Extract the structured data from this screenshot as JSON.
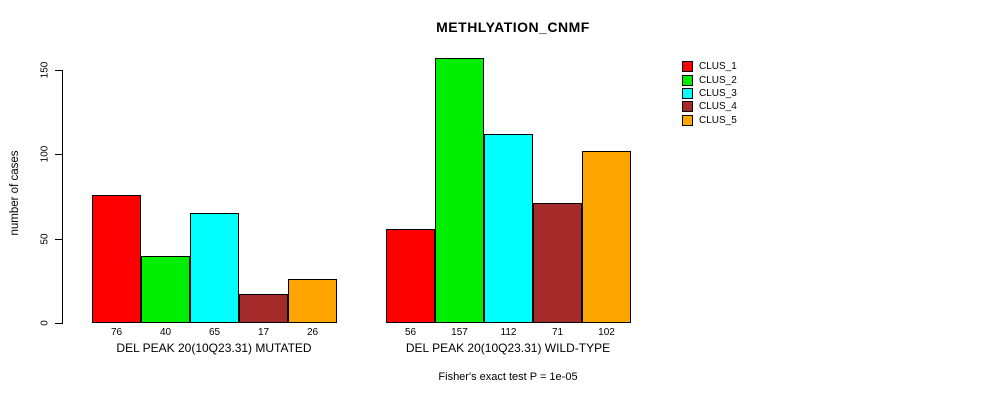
{
  "chart_data": {
    "type": "bar",
    "title": "METHLYATION_CNMF",
    "ylabel": "number of cases",
    "ylim": [
      0,
      157
    ],
    "yticks": [
      0,
      50,
      100,
      150
    ],
    "grid": false,
    "legend_position": "right-outside",
    "bar_border_color": "#000000",
    "series": [
      {
        "name": "CLUS_1",
        "color": "#FF0000"
      },
      {
        "name": "CLUS_2",
        "color": "#00EE00"
      },
      {
        "name": "CLUS_3",
        "color": "#00FFFF"
      },
      {
        "name": "CLUS_4",
        "color": "#A52A2A"
      },
      {
        "name": "CLUS_5",
        "color": "#FFA500"
      }
    ],
    "groups": [
      {
        "label": "DEL PEAK 20(10Q23.31) MUTATED",
        "values": [
          76,
          40,
          65,
          17,
          26
        ]
      },
      {
        "label": "DEL PEAK 20(10Q23.31) WILD-TYPE",
        "values": [
          56,
          157,
          112,
          71,
          102
        ]
      }
    ],
    "footnote": "Fisher's exact test P = 1e-05"
  }
}
